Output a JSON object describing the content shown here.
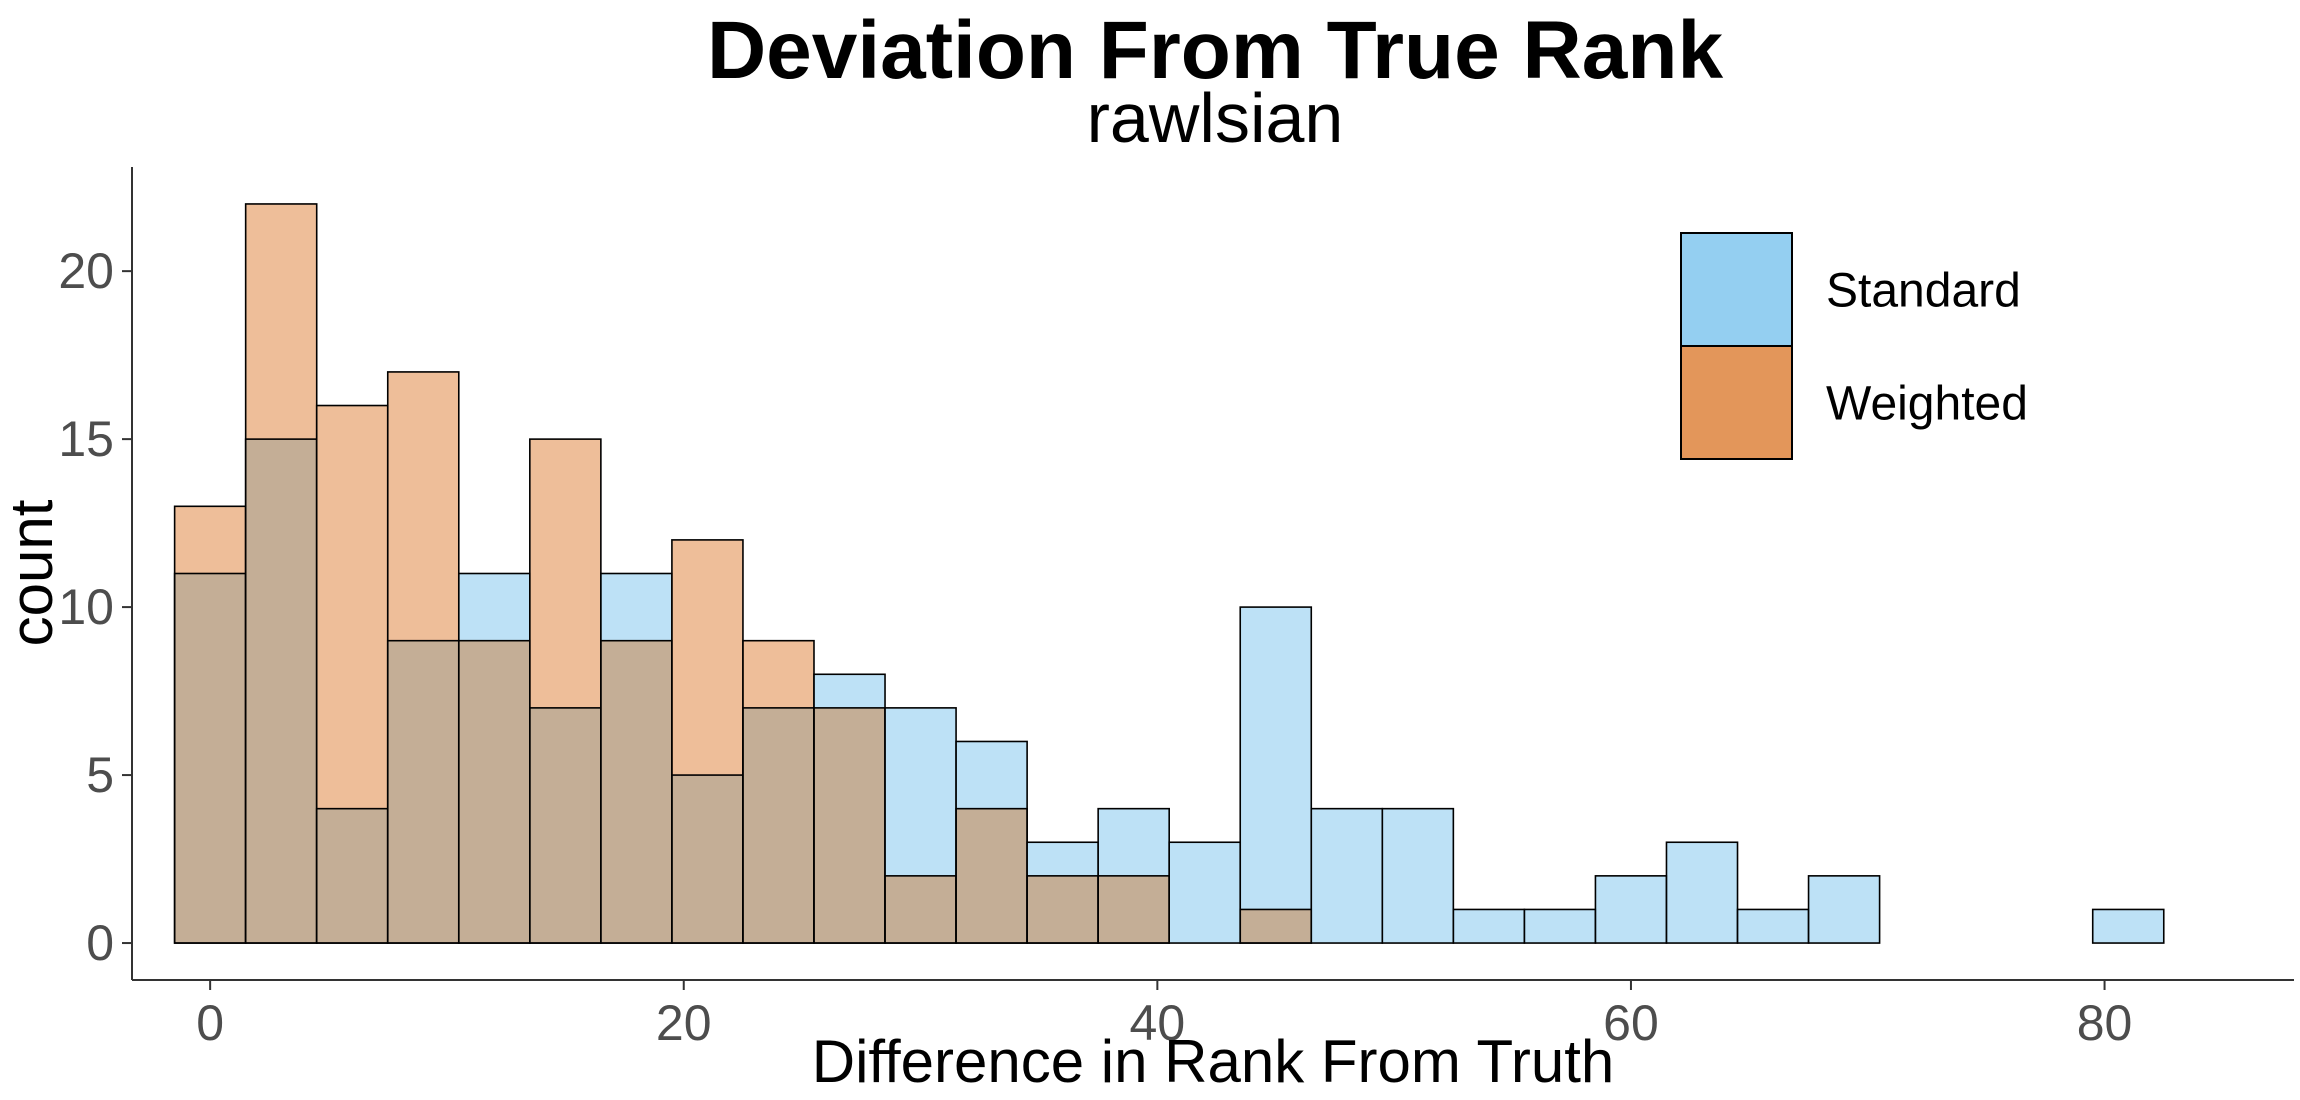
{
  "chart_data": {
    "type": "bar",
    "title": "Deviation From True Rank",
    "subtitle": "rawlsian",
    "xlabel": "Difference in Rank From Truth",
    "ylabel": "count",
    "xlim": [
      -3.3,
      88
    ],
    "ylim": [
      -1.1,
      23.1
    ],
    "xticks": [
      0,
      20,
      40,
      60,
      80
    ],
    "yticks": [
      0,
      5,
      10,
      15,
      20
    ],
    "bin_width": 3,
    "bin_centers": [
      0,
      3,
      6,
      9,
      12,
      15,
      18,
      21,
      24,
      27,
      30,
      33,
      36,
      39,
      42,
      45,
      48,
      51,
      54,
      57,
      60,
      63,
      66,
      69,
      72,
      75,
      78,
      81
    ],
    "grid": false,
    "legend_position": "top-right",
    "series": [
      {
        "name": "Standard",
        "color": "#94CFF1",
        "values": [
          11,
          15,
          4,
          9,
          11,
          7,
          11,
          5,
          7,
          8,
          7,
          6,
          3,
          4,
          3,
          10,
          4,
          4,
          1,
          1,
          2,
          3,
          1,
          2,
          0,
          0,
          0,
          1
        ]
      },
      {
        "name": "Weighted",
        "color": "#E3965A",
        "values": [
          13,
          22,
          16,
          17,
          9,
          15,
          9,
          12,
          9,
          7,
          2,
          4,
          2,
          2,
          0,
          1,
          0,
          0,
          0,
          0,
          0,
          0,
          0,
          0,
          0,
          0,
          0,
          0
        ]
      }
    ],
    "overlap_color": "#C4AE96"
  }
}
